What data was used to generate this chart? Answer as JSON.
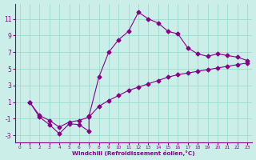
{
  "xlabel": "Windchill (Refroidissement éolien,°C)",
  "bg_color": "#cceee8",
  "grid_color": "#99ddcc",
  "line_color": "#880088",
  "xlim": [
    -0.5,
    23.5
  ],
  "ylim": [
    -3.8,
    12.8
  ],
  "xticks": [
    0,
    1,
    2,
    3,
    4,
    5,
    6,
    7,
    8,
    9,
    10,
    11,
    12,
    13,
    14,
    15,
    16,
    17,
    18,
    19,
    20,
    21,
    22,
    23
  ],
  "yticks": [
    -3,
    -1,
    1,
    3,
    5,
    7,
    9,
    11
  ],
  "curve1_x": [
    1,
    2,
    3,
    4,
    5,
    6,
    7,
    7,
    8,
    9,
    10,
    11,
    12,
    13,
    14,
    15,
    16,
    17,
    18,
    19,
    20,
    21,
    22,
    23
  ],
  "curve1_y": [
    1,
    -0.8,
    -1.7,
    -2.8,
    -1.6,
    -1.7,
    -2.5,
    -0.7,
    4.0,
    7.0,
    8.5,
    9.5,
    11.8,
    11.0,
    10.5,
    9.5,
    9.2,
    7.5,
    6.8,
    6.5,
    6.8,
    6.6,
    6.4,
    6.0
  ],
  "curve2_x": [
    1,
    2,
    3,
    4,
    5,
    6,
    7,
    8,
    9,
    10,
    11,
    12,
    13,
    14,
    15,
    16,
    17,
    18,
    19,
    20,
    21,
    22,
    23
  ],
  "curve2_y": [
    1,
    -0.6,
    -1.2,
    -2.0,
    -1.4,
    -1.2,
    -0.8,
    0.5,
    1.2,
    1.8,
    2.4,
    2.8,
    3.2,
    3.6,
    4.0,
    4.3,
    4.5,
    4.7,
    4.9,
    5.1,
    5.3,
    5.5,
    5.7
  ]
}
